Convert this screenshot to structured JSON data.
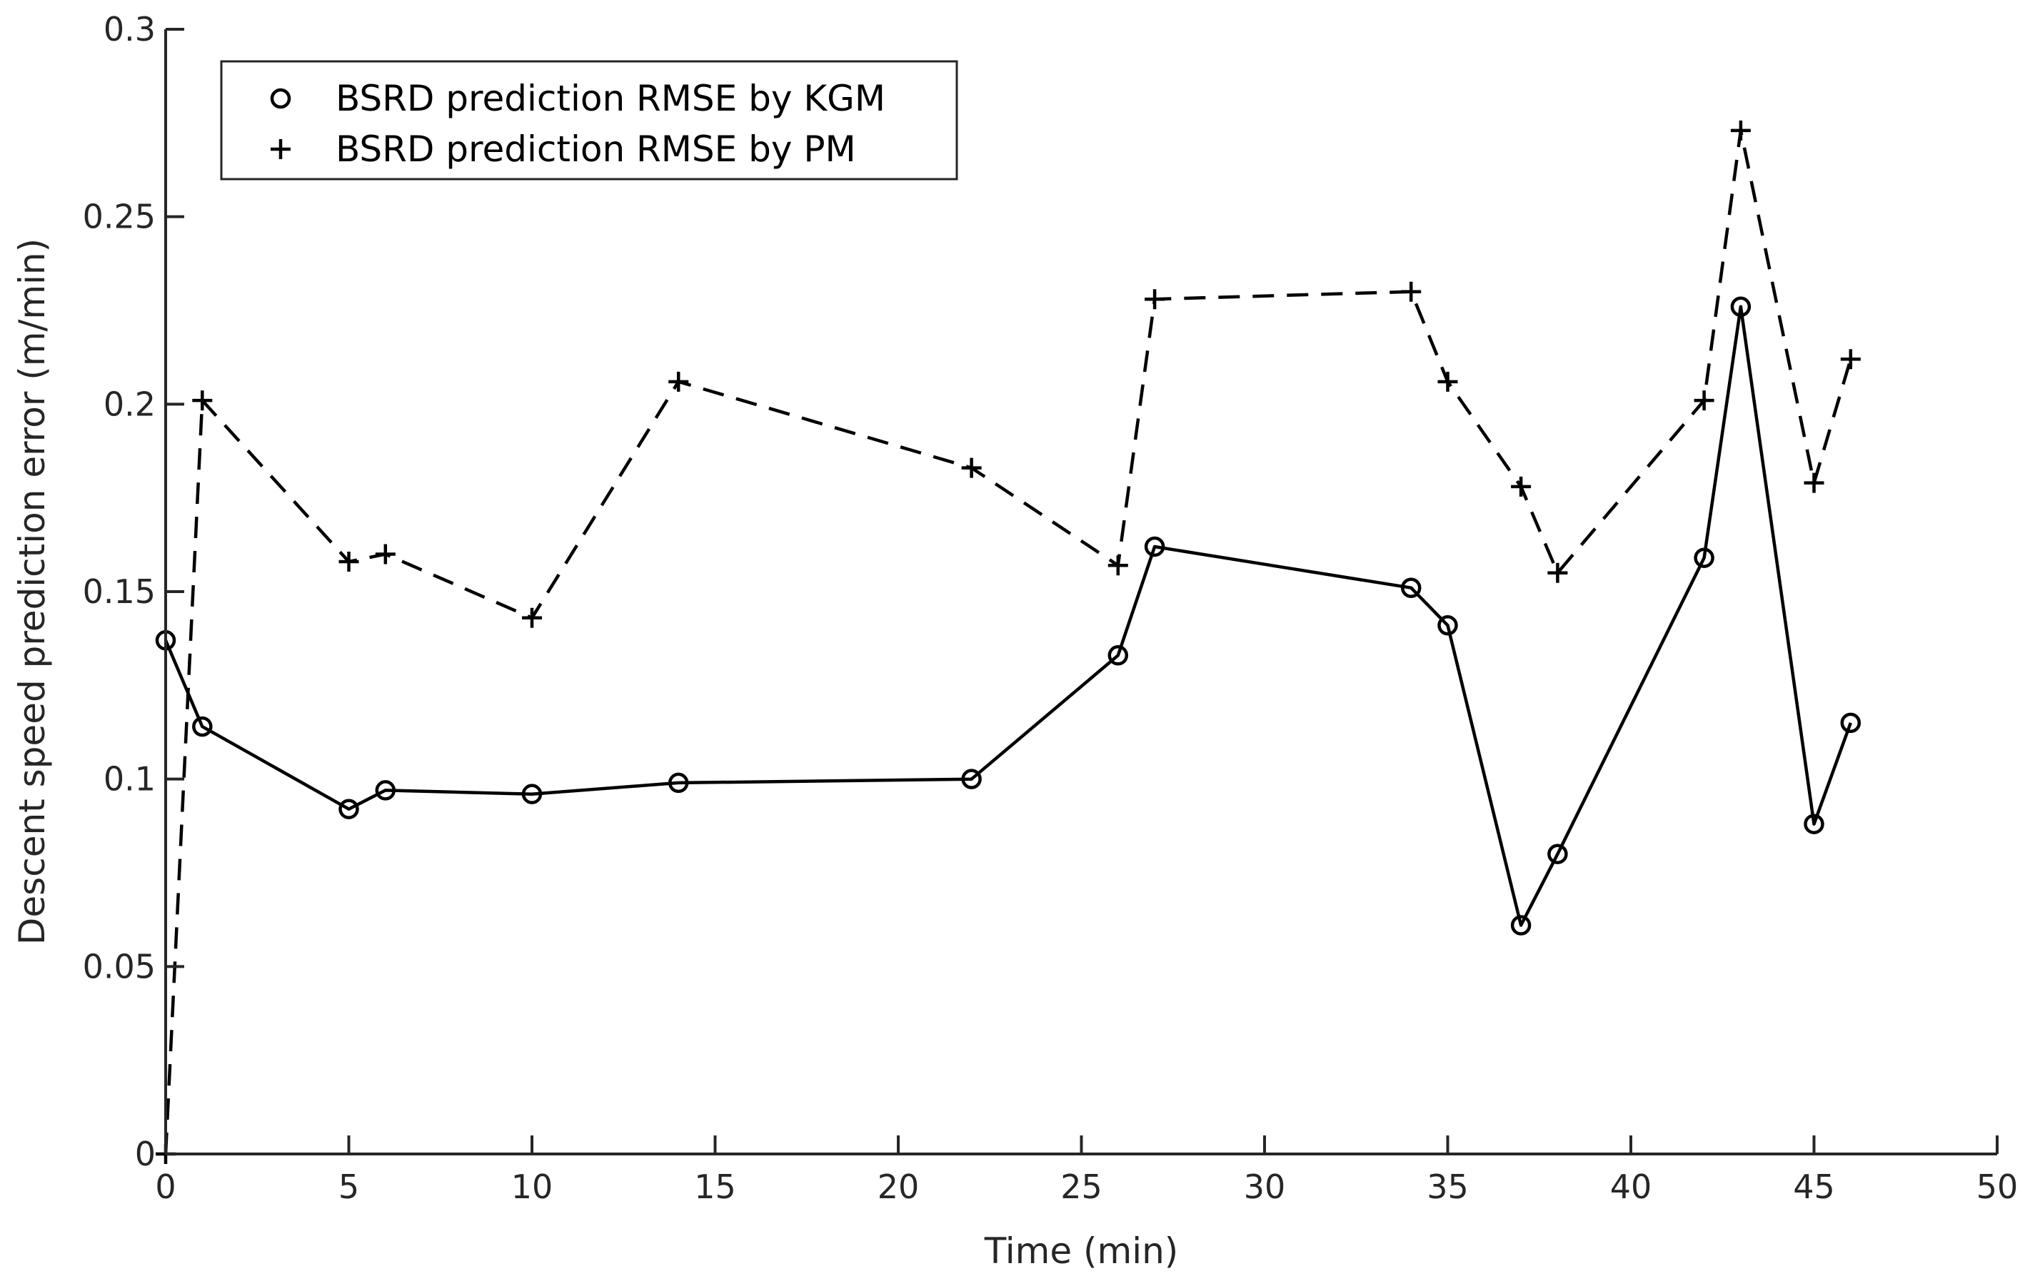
{
  "chart_data": {
    "type": "line",
    "title": "",
    "xlabel": "Time (min)",
    "ylabel": "Descent speed prediction error (m/min)",
    "xlim": [
      0,
      50
    ],
    "ylim": [
      0,
      0.3
    ],
    "xticks": [
      0,
      5,
      10,
      15,
      20,
      25,
      30,
      35,
      40,
      45,
      50
    ],
    "xtick_labels": [
      "0",
      "5",
      "10",
      "15",
      "20",
      "25",
      "30",
      "35",
      "40",
      "45",
      "50"
    ],
    "yticks": [
      0,
      0.05,
      0.1,
      0.15,
      0.2,
      0.25,
      0.3
    ],
    "ytick_labels": [
      "0",
      "0.05",
      "0.1",
      "0.15",
      "0.2",
      "0.25",
      "0.3"
    ],
    "grid": false,
    "legend_position": "top-left",
    "series": [
      {
        "name": "BSRD prediction RMSE by KGM",
        "marker": "circle",
        "line_style": "solid",
        "color": "#000000",
        "x": [
          0,
          1,
          5,
          6,
          10,
          14,
          22,
          26,
          27,
          34,
          35,
          37,
          38,
          42,
          43,
          45,
          46
        ],
        "values": [
          0.137,
          0.114,
          0.092,
          0.097,
          0.096,
          0.099,
          0.1,
          0.133,
          0.162,
          0.151,
          0.141,
          0.061,
          0.08,
          0.159,
          0.226,
          0.088,
          0.115
        ]
      },
      {
        "name": "BSRD prediction RMSE by PM",
        "marker": "plus",
        "line_style": "dashed",
        "color": "#000000",
        "x": [
          0,
          1,
          5,
          6,
          10,
          14,
          22,
          26,
          27,
          34,
          35,
          37,
          38,
          42,
          43,
          45,
          46
        ],
        "values": [
          0.0,
          0.201,
          0.158,
          0.16,
          0.143,
          0.206,
          0.183,
          0.157,
          0.228,
          0.23,
          0.206,
          0.178,
          0.155,
          0.201,
          0.273,
          0.179,
          0.212
        ]
      }
    ]
  }
}
